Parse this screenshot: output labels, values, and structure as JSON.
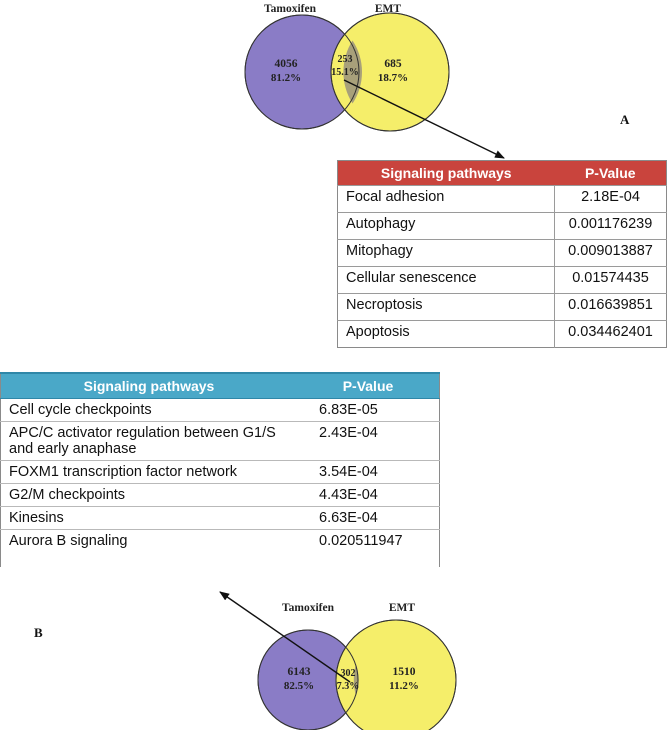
{
  "panel_a": {
    "label": "A",
    "venn": {
      "left_title": "Tamoxifen",
      "right_title": "EMT",
      "left_count": "4056",
      "left_pct": "81.2%",
      "overlap_count": "253",
      "overlap_pct": "15.1%",
      "right_count": "685",
      "right_pct": "18.7%"
    },
    "table": {
      "header_pathway": "Signaling pathways",
      "header_pvalue": "P-Value",
      "rows": [
        {
          "pathway": "Focal adhesion",
          "pvalue": "2.18E-04"
        },
        {
          "pathway": "Autophagy",
          "pvalue": "0.001176239"
        },
        {
          "pathway": "Mitophagy",
          "pvalue": "0.009013887"
        },
        {
          "pathway": "Cellular senescence",
          "pvalue": "0.01574435"
        },
        {
          "pathway": "Necroptosis",
          "pvalue": "0.016639851"
        },
        {
          "pathway": "Apoptosis",
          "pvalue": "0.034462401"
        }
      ]
    }
  },
  "panel_b": {
    "label": "B",
    "venn": {
      "left_title": "Tamoxifen",
      "right_title": "EMT",
      "left_count": "6143",
      "left_pct": "82.5%",
      "overlap_count": "302",
      "overlap_pct": "7.3%",
      "right_count": "1510",
      "right_pct": "11.2%"
    },
    "table": {
      "header_pathway": "Signaling pathways",
      "header_pvalue": "P-Value",
      "rows": [
        {
          "pathway": "Cell cycle checkpoints",
          "pvalue": "6.83E-05"
        },
        {
          "pathway": "APC/C activator regulation between G1/S and early anaphase",
          "pvalue": "2.43E-04"
        },
        {
          "pathway": "FOXM1 transcription factor network",
          "pvalue": "3.54E-04"
        },
        {
          "pathway": "G2/M checkpoints",
          "pvalue": "4.43E-04"
        },
        {
          "pathway": "Kinesins",
          "pvalue": "6.63E-04"
        },
        {
          "pathway": "Aurora B signaling",
          "pvalue": "0.020511947"
        }
      ]
    }
  },
  "colors": {
    "tamoxifen_circle": "#8a7cc6",
    "emt_circle": "#f5ee6a",
    "overlap": "#a8a07a",
    "table_a_header": "#c9443d",
    "table_b_header": "#4aa8c8"
  }
}
